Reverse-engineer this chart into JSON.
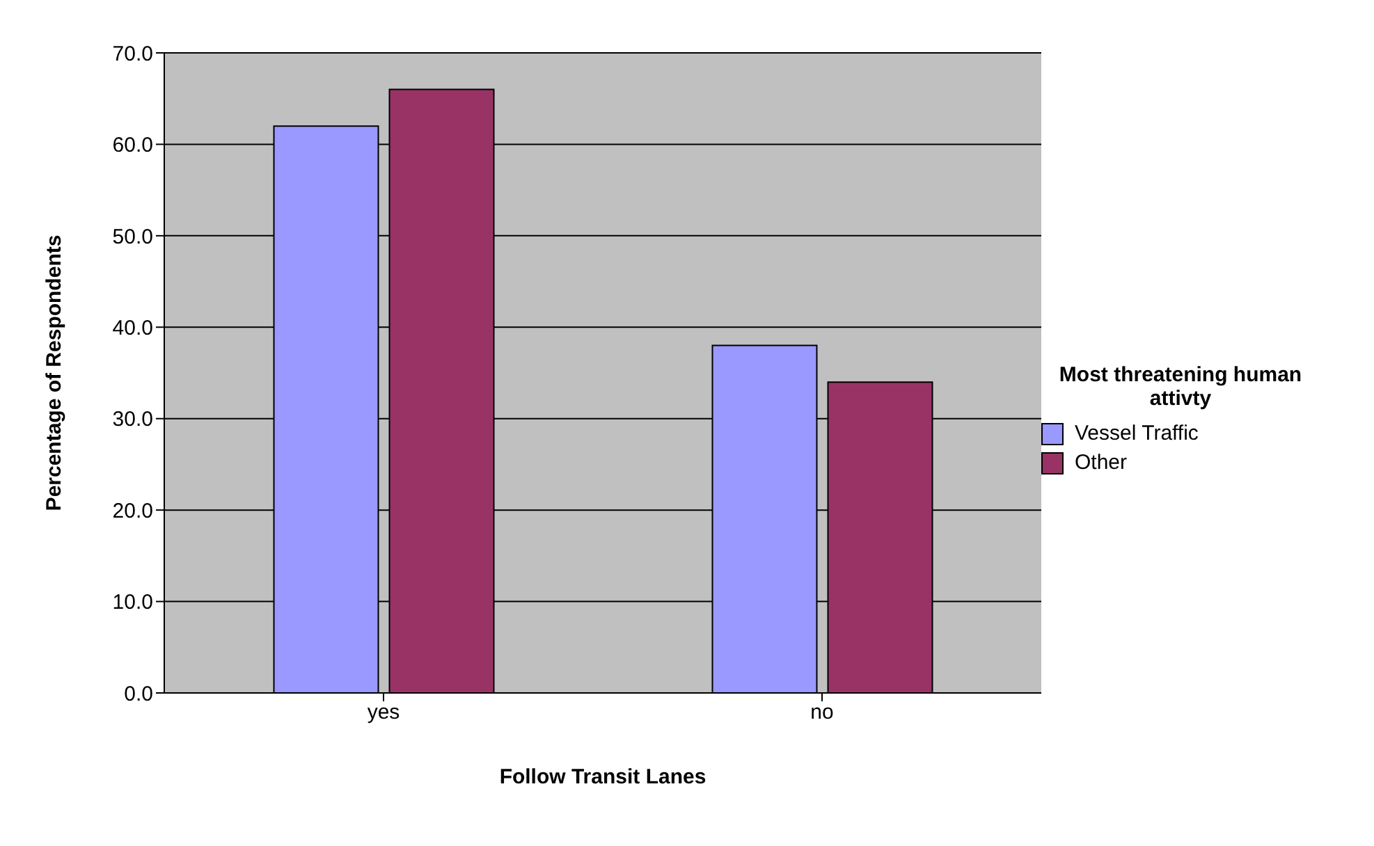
{
  "chart_data": {
    "type": "bar",
    "xlabel": "Follow Transit Lanes",
    "ylabel": "Percentage of Respondents",
    "legend_title": "Most threatening human attivty",
    "categories": [
      "yes",
      "no"
    ],
    "series": [
      {
        "name": "Vessel Traffic",
        "color": "#9999ff",
        "values": [
          62,
          38
        ]
      },
      {
        "name": "Other",
        "color": "#993366",
        "values": [
          66,
          34
        ]
      }
    ],
    "ylim": [
      0,
      70
    ],
    "yticks": [
      {
        "value": 0,
        "label": "0.0"
      },
      {
        "value": 10,
        "label": "10.0"
      },
      {
        "value": 20,
        "label": "20.0"
      },
      {
        "value": 30,
        "label": "30.0"
      },
      {
        "value": 40,
        "label": "40.0"
      },
      {
        "value": 50,
        "label": "50.0"
      },
      {
        "value": 60,
        "label": "60.0"
      },
      {
        "value": 70,
        "label": "70.0"
      }
    ],
    "grid": "y",
    "legend": "right"
  }
}
